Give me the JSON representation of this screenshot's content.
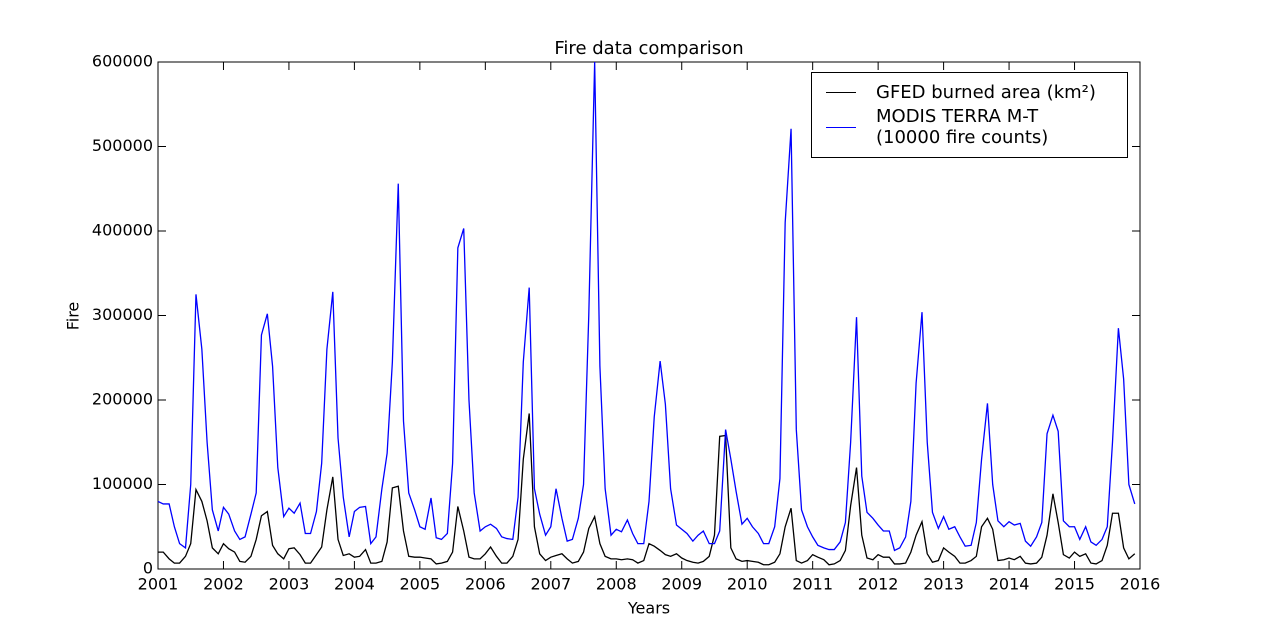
{
  "chart_data": {
    "type": "line",
    "title": "Fire data comparison",
    "x_label": "Years",
    "y_label": "Fire",
    "xlim": [
      2001,
      2016
    ],
    "xticks": [
      2001,
      2002,
      2003,
      2004,
      2005,
      2006,
      2007,
      2008,
      2009,
      2010,
      2011,
      2012,
      2013,
      2014,
      2015,
      2016
    ],
    "ylim": [
      0,
      600000
    ],
    "yticks": [
      0,
      100000,
      200000,
      300000,
      400000,
      500000,
      600000
    ],
    "legend": "upper right",
    "grid": false,
    "x": [
      2001,
      2001.08,
      2001.17,
      2001.25,
      2001.33,
      2001.42,
      2001.5,
      2001.58,
      2001.67,
      2001.75,
      2001.83,
      2001.92,
      2002,
      2002.08,
      2002.17,
      2002.25,
      2002.33,
      2002.42,
      2002.5,
      2002.58,
      2002.67,
      2002.75,
      2002.83,
      2002.92,
      2003,
      2003.08,
      2003.17,
      2003.25,
      2003.33,
      2003.42,
      2003.5,
      2003.58,
      2003.67,
      2003.75,
      2003.83,
      2003.92,
      2004,
      2004.08,
      2004.17,
      2004.25,
      2004.33,
      2004.42,
      2004.5,
      2004.58,
      2004.67,
      2004.75,
      2004.83,
      2004.92,
      2005,
      2005.08,
      2005.17,
      2005.25,
      2005.33,
      2005.42,
      2005.5,
      2005.58,
      2005.67,
      2005.75,
      2005.83,
      2005.92,
      2006,
      2006.08,
      2006.17,
      2006.25,
      2006.33,
      2006.42,
      2006.5,
      2006.58,
      2006.67,
      2006.75,
      2006.83,
      2006.92,
      2007,
      2007.08,
      2007.17,
      2007.25,
      2007.33,
      2007.42,
      2007.5,
      2007.58,
      2007.67,
      2007.75,
      2007.83,
      2007.92,
      2008,
      2008.08,
      2008.17,
      2008.25,
      2008.33,
      2008.42,
      2008.5,
      2008.58,
      2008.67,
      2008.75,
      2008.83,
      2008.92,
      2009,
      2009.08,
      2009.17,
      2009.25,
      2009.33,
      2009.42,
      2009.5,
      2009.58,
      2009.67,
      2009.75,
      2009.83,
      2009.92,
      2010,
      2010.08,
      2010.17,
      2010.25,
      2010.33,
      2010.42,
      2010.5,
      2010.58,
      2010.67,
      2010.75,
      2010.83,
      2010.92,
      2011,
      2011.08,
      2011.17,
      2011.25,
      2011.33,
      2011.42,
      2011.5,
      2011.58,
      2011.67,
      2011.75,
      2011.83,
      2011.92,
      2012,
      2012.08,
      2012.17,
      2012.25,
      2012.33,
      2012.42,
      2012.5,
      2012.58,
      2012.67,
      2012.75,
      2012.83,
      2012.92,
      2013,
      2013.08,
      2013.17,
      2013.25,
      2013.33,
      2013.42,
      2013.5,
      2013.58,
      2013.67,
      2013.75,
      2013.83,
      2013.92,
      2014,
      2014.08,
      2014.17,
      2014.25,
      2014.33,
      2014.42,
      2014.5,
      2014.58,
      2014.67,
      2014.75,
      2014.83,
      2014.92,
      2015,
      2015.08,
      2015.17,
      2015.25,
      2015.33,
      2015.42,
      2015.5,
      2015.58,
      2015.67,
      2015.75,
      2015.83,
      2015.92
    ],
    "series": [
      {
        "name": "GFED burned area (km²)",
        "color": "#000000",
        "values": [
          20000,
          20000,
          12000,
          7000,
          7000,
          15000,
          30000,
          94000,
          80000,
          57000,
          25000,
          18000,
          30000,
          24000,
          20000,
          9000,
          8000,
          15000,
          35000,
          63000,
          68000,
          28000,
          18000,
          12000,
          24000,
          25000,
          17000,
          7000,
          7000,
          17000,
          26000,
          70000,
          109000,
          35000,
          16000,
          18000,
          14000,
          15000,
          23000,
          7000,
          7000,
          9000,
          32000,
          96000,
          98000,
          45000,
          15000,
          14000,
          14000,
          13000,
          12000,
          6000,
          7000,
          9000,
          20000,
          74000,
          45000,
          14000,
          12000,
          12000,
          18000,
          26000,
          15000,
          7000,
          7000,
          15000,
          35000,
          130000,
          184000,
          50000,
          18000,
          10000,
          14000,
          16000,
          18000,
          12000,
          7000,
          9000,
          20000,
          48000,
          62000,
          30000,
          15000,
          12000,
          12000,
          11000,
          12000,
          11000,
          7000,
          10000,
          30000,
          27000,
          22000,
          17000,
          15000,
          18000,
          13000,
          10000,
          8000,
          7000,
          9000,
          15000,
          40000,
          157000,
          158000,
          25000,
          12000,
          9000,
          10000,
          9000,
          8000,
          5000,
          5000,
          8000,
          18000,
          50000,
          72000,
          10000,
          7000,
          10000,
          17000,
          14000,
          11000,
          5000,
          6000,
          10000,
          22000,
          75000,
          120000,
          40000,
          13000,
          11000,
          17000,
          14000,
          14000,
          6000,
          6000,
          7000,
          20000,
          40000,
          56000,
          18000,
          8000,
          10000,
          25000,
          20000,
          15000,
          7000,
          7000,
          10000,
          15000,
          50000,
          60000,
          47000,
          10000,
          11000,
          13000,
          11000,
          15000,
          7000,
          6000,
          7000,
          14000,
          40000,
          89000,
          55000,
          17000,
          13000,
          20000,
          15000,
          18000,
          7000,
          6000,
          10000,
          28000,
          66000,
          66000,
          25000,
          12000,
          18000
        ]
      },
      {
        "name": "MODIS TERRA M-T\n(10000 fire counts)",
        "color": "#0000ff",
        "values": [
          80000,
          77000,
          77000,
          50000,
          30000,
          25000,
          100000,
          325000,
          260000,
          150000,
          70000,
          45000,
          73000,
          65000,
          45000,
          35000,
          38000,
          65000,
          90000,
          277000,
          302000,
          240000,
          120000,
          62000,
          72000,
          66000,
          78000,
          42000,
          42000,
          68000,
          125000,
          260000,
          328000,
          155000,
          85000,
          38000,
          68000,
          73000,
          74000,
          30000,
          38000,
          95000,
          137000,
          245000,
          456000,
          175000,
          90000,
          70000,
          50000,
          47000,
          84000,
          37000,
          35000,
          42000,
          125000,
          380000,
          403000,
          200000,
          90000,
          45000,
          50000,
          53000,
          48000,
          38000,
          36000,
          35000,
          85000,
          245000,
          333000,
          95000,
          65000,
          40000,
          50000,
          95000,
          60000,
          33000,
          35000,
          60000,
          100000,
          300000,
          600000,
          240000,
          95000,
          40000,
          47000,
          44000,
          58000,
          42000,
          30000,
          30000,
          80000,
          180000,
          246000,
          195000,
          95000,
          52000,
          47000,
          42000,
          33000,
          40000,
          45000,
          30000,
          30000,
          45000,
          165000,
          130000,
          92000,
          53000,
          60000,
          50000,
          42000,
          30000,
          30000,
          50000,
          107000,
          410000,
          521000,
          165000,
          70000,
          50000,
          38000,
          28000,
          25000,
          23000,
          23000,
          32000,
          55000,
          150000,
          298000,
          110000,
          67000,
          60000,
          52000,
          45000,
          45000,
          22000,
          25000,
          38000,
          80000,
          220000,
          304000,
          150000,
          67000,
          48000,
          62000,
          47000,
          50000,
          38000,
          27000,
          28000,
          55000,
          130000,
          196000,
          100000,
          57000,
          50000,
          56000,
          52000,
          54000,
          33000,
          27000,
          38000,
          55000,
          160000,
          182000,
          163000,
          57000,
          50000,
          50000,
          35000,
          50000,
          32000,
          28000,
          35000,
          50000,
          150000,
          285000,
          225000,
          100000,
          77000
        ]
      }
    ]
  }
}
